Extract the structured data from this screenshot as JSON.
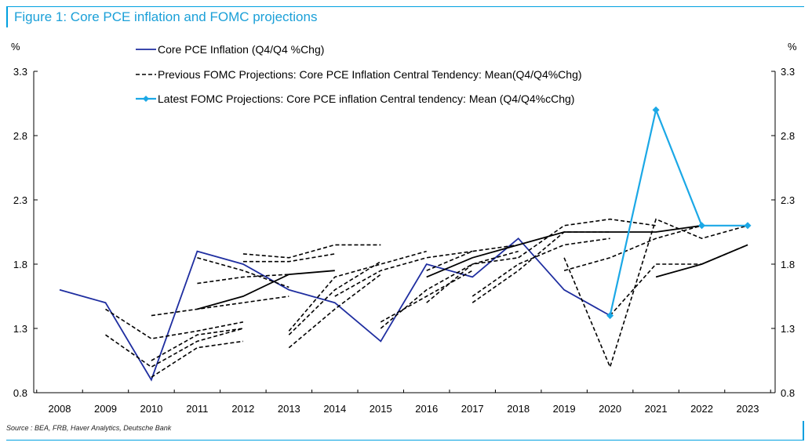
{
  "figure": {
    "title": "Figure 1: Core PCE inflation and FOMC projections",
    "source": "Source : BEA, FRB, Haver Analytics, Deutsche Bank",
    "colors": {
      "accent": "#00a0e0",
      "core": "#1f2ea0",
      "latest": "#1ba8e6",
      "previous": "#000000"
    }
  },
  "chart_data": {
    "type": "line",
    "ylabel_left": "%",
    "ylabel_right": "%",
    "ylim": [
      0.8,
      3.3
    ],
    "yticks": [
      "0.8",
      "1.3",
      "1.8",
      "2.3",
      "2.8",
      "3.3"
    ],
    "xticks": [
      "2008",
      "2009",
      "2010",
      "2011",
      "2012",
      "2013",
      "2014",
      "2015",
      "2016",
      "2017",
      "2018",
      "2019",
      "2020",
      "2021",
      "2022",
      "2023"
    ],
    "legend_placement": "top-center",
    "series": [
      {
        "name": "Core PCE Inflation (Q4/Q4 %Chg)",
        "style": "solid",
        "points": [
          [
            2008,
            1.6
          ],
          [
            2009,
            1.5
          ],
          [
            2010,
            0.9
          ],
          [
            2011,
            1.9
          ],
          [
            2012,
            1.8
          ],
          [
            2013,
            1.6
          ],
          [
            2014,
            1.5
          ],
          [
            2015,
            1.2
          ],
          [
            2016,
            1.8
          ],
          [
            2017,
            1.7
          ],
          [
            2018,
            2.0
          ],
          [
            2019,
            1.6
          ],
          [
            2020,
            1.4
          ]
        ]
      },
      {
        "name": "Previous FOMC Projections: Core PCE Inflation Central Tendency: Mean(Q4/Q4%Chg)",
        "style": "dashed",
        "paths": [
          [
            [
              2009,
              1.45
            ],
            [
              2010,
              1.22
            ],
            [
              2011,
              1.28
            ],
            [
              2012,
              1.35
            ]
          ],
          [
            [
              2009,
              1.25
            ],
            [
              2010,
              1.0
            ],
            [
              2011,
              1.2
            ],
            [
              2012,
              1.3
            ]
          ],
          [
            [
              2010,
              0.92
            ],
            [
              2011,
              1.15
            ],
            [
              2012,
              1.2
            ]
          ],
          [
            [
              2010,
              1.05
            ],
            [
              2011,
              1.25
            ],
            [
              2012,
              1.3
            ]
          ],
          [
            [
              2010,
              1.4
            ],
            [
              2011,
              1.45
            ],
            [
              2012,
              1.5
            ],
            [
              2013,
              1.55
            ]
          ],
          [
            [
              2011,
              1.65
            ],
            [
              2012,
              1.7
            ],
            [
              2013,
              1.72
            ]
          ],
          [
            [
              2011,
              1.85
            ],
            [
              2012,
              1.75
            ],
            [
              2013,
              1.62
            ]
          ],
          [
            [
              2012,
              1.88
            ],
            [
              2013,
              1.85
            ],
            [
              2014,
              1.95
            ],
            [
              2015,
              1.95
            ]
          ],
          [
            [
              2012,
              1.82
            ],
            [
              2013,
              1.82
            ],
            [
              2014,
              1.88
            ]
          ],
          [
            [
              2013,
              1.25
            ],
            [
              2014,
              1.6
            ],
            [
              2015,
              1.82
            ]
          ],
          [
            [
              2013,
              1.15
            ],
            [
              2014,
              1.45
            ],
            [
              2015,
              1.72
            ]
          ],
          [
            [
              2013,
              1.28
            ],
            [
              2014,
              1.7
            ],
            [
              2015,
              1.8
            ],
            [
              2016,
              1.9
            ]
          ],
          [
            [
              2014,
              1.55
            ],
            [
              2015,
              1.75
            ],
            [
              2016,
              1.85
            ],
            [
              2017,
              1.9
            ]
          ],
          [
            [
              2015,
              1.3
            ],
            [
              2016,
              1.6
            ],
            [
              2017,
              1.8
            ],
            [
              2018,
              1.9
            ]
          ],
          [
            [
              2015,
              1.35
            ],
            [
              2016,
              1.55
            ],
            [
              2017,
              1.75
            ]
          ],
          [
            [
              2016,
              1.75
            ],
            [
              2017,
              1.9
            ],
            [
              2018,
              1.95
            ]
          ],
          [
            [
              2016,
              1.5
            ],
            [
              2017,
              1.8
            ],
            [
              2018,
              1.85
            ]
          ],
          [
            [
              2017,
              1.55
            ],
            [
              2018,
              1.8
            ],
            [
              2019,
              1.95
            ],
            [
              2020,
              2.0
            ]
          ],
          [
            [
              2017,
              1.5
            ],
            [
              2018,
              1.75
            ],
            [
              2019,
              2.05
            ],
            [
              2020,
              2.05
            ]
          ],
          [
            [
              2018,
              1.85
            ],
            [
              2019,
              2.1
            ],
            [
              2020,
              2.15
            ],
            [
              2021,
              2.1
            ]
          ],
          [
            [
              2019,
              1.75
            ],
            [
              2020,
              1.85
            ],
            [
              2021,
              2.0
            ],
            [
              2022,
              2.1
            ]
          ],
          [
            [
              2019,
              1.85
            ],
            [
              2020,
              1.0
            ],
            [
              2021,
              2.15
            ],
            [
              2022,
              2.0
            ],
            [
              2023,
              2.1
            ]
          ],
          [
            [
              2020,
              1.4
            ],
            [
              2021,
              1.8
            ],
            [
              2022,
              1.8
            ],
            [
              2023,
              1.95
            ]
          ]
        ]
      },
      {
        "name": "Previous FOMC Projections (solid continuation)",
        "style": "solid-black",
        "legend": false,
        "paths": [
          [
            [
              2011,
              1.45
            ],
            [
              2012,
              1.55
            ],
            [
              2013,
              1.72
            ],
            [
              2014,
              1.75
            ]
          ],
          [
            [
              2016,
              1.7
            ],
            [
              2017,
              1.85
            ],
            [
              2018,
              1.95
            ],
            [
              2019,
              2.05
            ],
            [
              2020,
              2.05
            ],
            [
              2021,
              2.05
            ],
            [
              2022,
              2.1
            ]
          ],
          [
            [
              2021,
              1.7
            ],
            [
              2022,
              1.8
            ],
            [
              2023,
              1.95
            ]
          ]
        ]
      },
      {
        "name": "Latest FOMC Projections: Core PCE inflation Central tendency: Mean (Q4/Q4%cChg)",
        "style": "marker",
        "points": [
          [
            2020,
            1.4
          ],
          [
            2021,
            3.0
          ],
          [
            2022,
            2.1
          ],
          [
            2023,
            2.1
          ]
        ]
      }
    ]
  }
}
